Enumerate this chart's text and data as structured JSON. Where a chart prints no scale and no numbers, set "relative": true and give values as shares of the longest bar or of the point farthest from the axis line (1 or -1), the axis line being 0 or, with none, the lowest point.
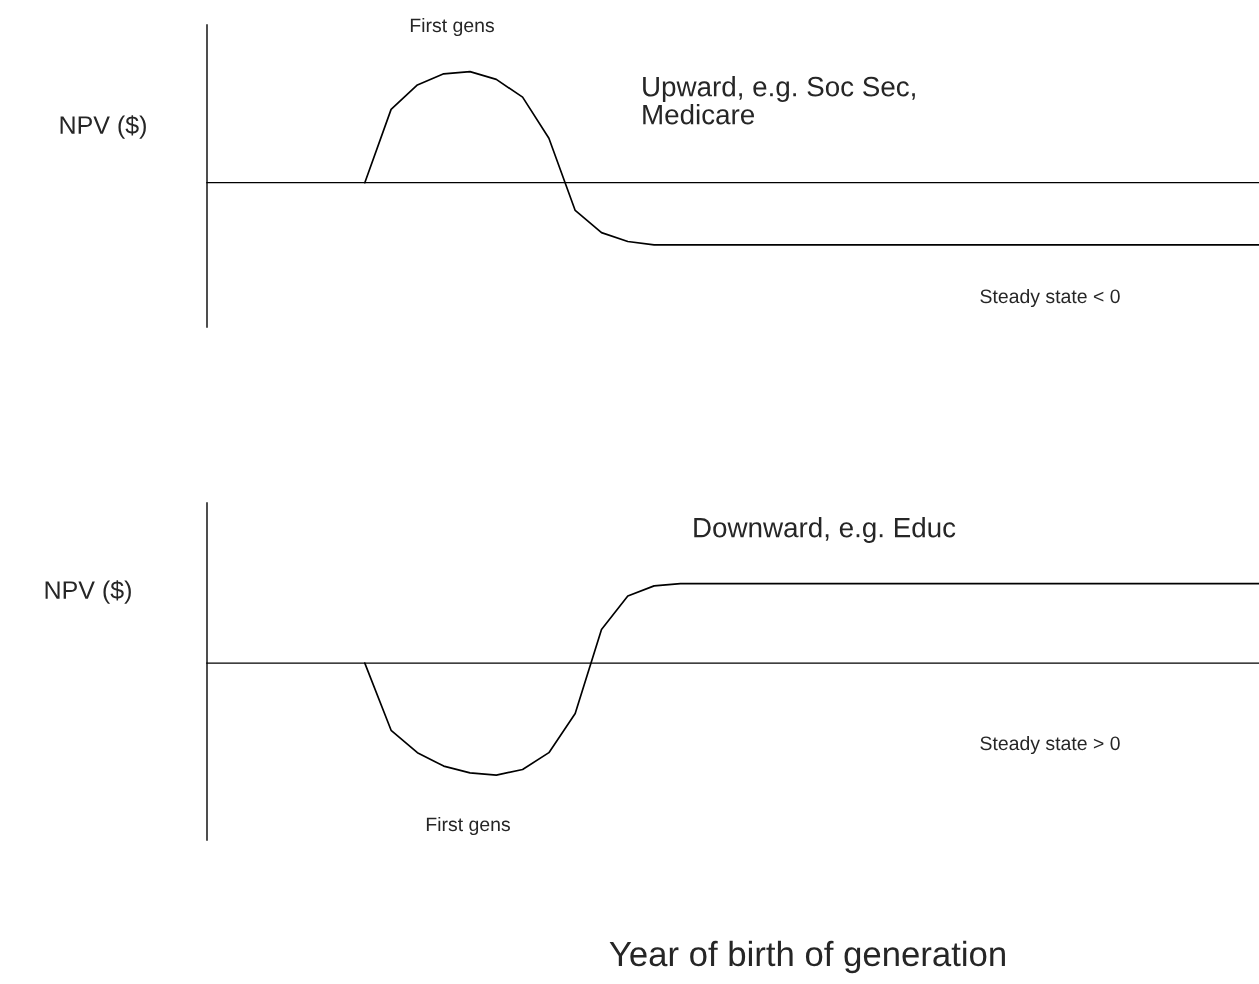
{
  "chart_data": [
    {
      "type": "line",
      "relative": true,
      "ylabel": "NPV ($)",
      "categories": [
        null,
        null,
        null,
        null,
        null,
        null,
        null,
        null,
        null,
        null,
        null,
        null,
        null,
        null,
        null,
        null,
        null,
        null,
        null,
        null,
        null,
        null,
        null,
        null,
        null,
        null,
        null,
        null,
        null,
        null,
        null,
        null,
        null,
        null,
        null,
        null,
        null,
        null,
        null,
        null,
        null
      ],
      "series": [
        {
          "color": "#000000",
          "values": [
            null,
            null,
            null,
            null,
            null,
            null,
            0,
            0.66,
            0.88,
            0.98,
            1,
            0.93,
            0.77,
            0.4,
            -0.25,
            -0.45,
            -0.53,
            -0.56,
            -0.56,
            -0.56,
            -0.56,
            -0.56,
            -0.56,
            -0.56,
            -0.56,
            -0.56,
            -0.56,
            -0.56,
            -0.56,
            -0.56,
            -0.56,
            -0.56,
            -0.56,
            -0.56,
            -0.56,
            -0.56,
            -0.56,
            -0.56,
            -0.56,
            -0.56,
            -0.56
          ]
        }
      ],
      "annotations": [
        "First gens",
        "Upward, e.g. Soc Sec,\nMedicare",
        "Steady state < 0"
      ]
    },
    {
      "type": "line",
      "relative": true,
      "ylabel": "NPV ($)",
      "xlabel": "Year of birth of generation",
      "categories": [
        null,
        null,
        null,
        null,
        null,
        null,
        null,
        null,
        null,
        null,
        null,
        null,
        null,
        null,
        null,
        null,
        null,
        null,
        null,
        null,
        null,
        null,
        null,
        null,
        null,
        null,
        null,
        null,
        null,
        null,
        null,
        null,
        null,
        null,
        null,
        null,
        null,
        null,
        null,
        null,
        null
      ],
      "series": [
        {
          "color": "#000000",
          "values": [
            null,
            null,
            null,
            null,
            null,
            null,
            0,
            -0.6,
            -0.8,
            -0.92,
            -0.98,
            -1,
            -0.95,
            -0.8,
            -0.45,
            0.3,
            0.6,
            0.69,
            0.71,
            0.71,
            0.71,
            0.71,
            0.71,
            0.71,
            0.71,
            0.71,
            0.71,
            0.71,
            0.71,
            0.71,
            0.71,
            0.71,
            0.71,
            0.71,
            0.71,
            0.71,
            0.71,
            0.71,
            0.71,
            0.71,
            0.71
          ]
        }
      ],
      "annotations": [
        "Downward, e.g. Educ",
        "Steady state > 0",
        "First gens"
      ]
    }
  ]
}
